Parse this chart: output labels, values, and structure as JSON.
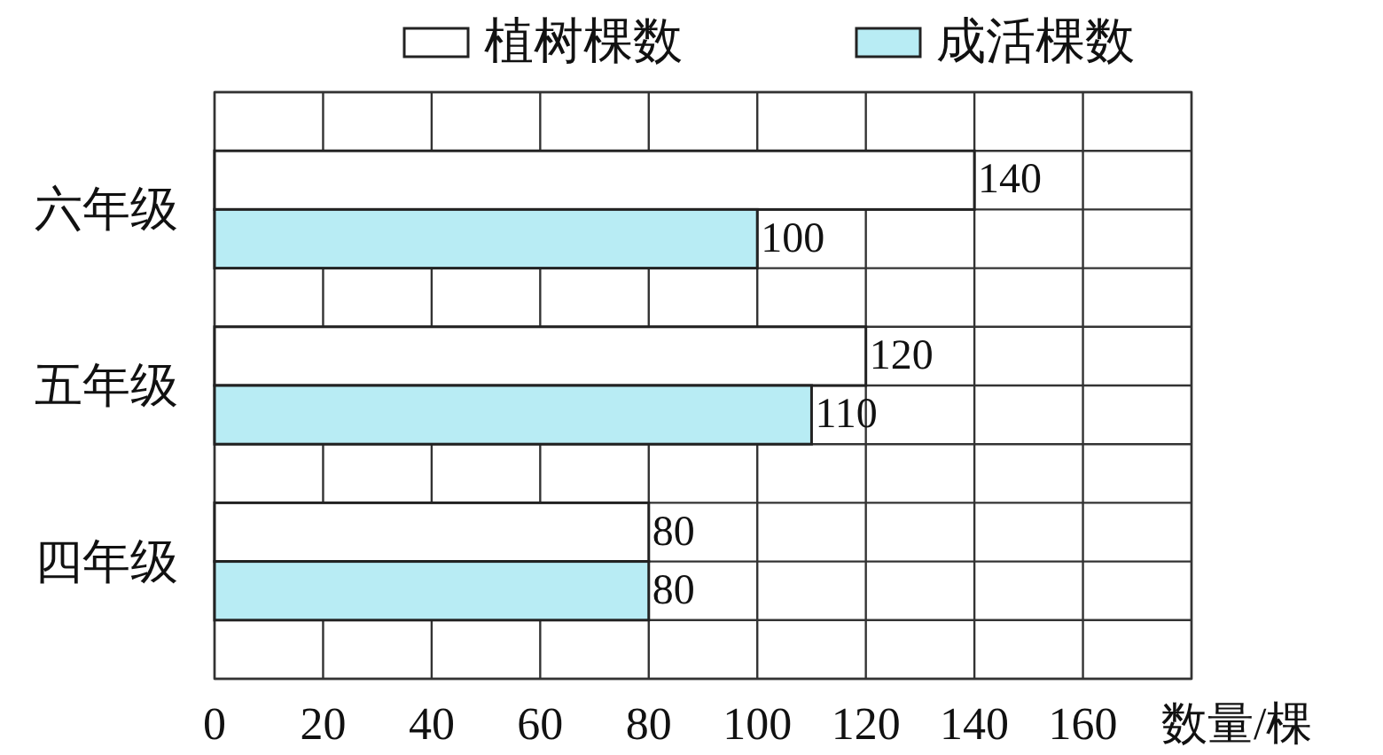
{
  "chart_data": {
    "type": "bar",
    "orientation": "horizontal",
    "categories": [
      "六年级",
      "五年级",
      "四年级"
    ],
    "series": [
      {
        "name": "植树棵数",
        "color": "#ffffff",
        "values": [
          140,
          120,
          80
        ]
      },
      {
        "name": "成活棵数",
        "color": "#b8ecf4",
        "values": [
          100,
          110,
          80
        ]
      }
    ],
    "xlim": [
      0,
      180
    ],
    "xticks": [
      0,
      20,
      40,
      60,
      80,
      100,
      120,
      140,
      160
    ],
    "xlabel": "数量/棵",
    "grid": true,
    "legend": "top",
    "data_labels": true
  }
}
